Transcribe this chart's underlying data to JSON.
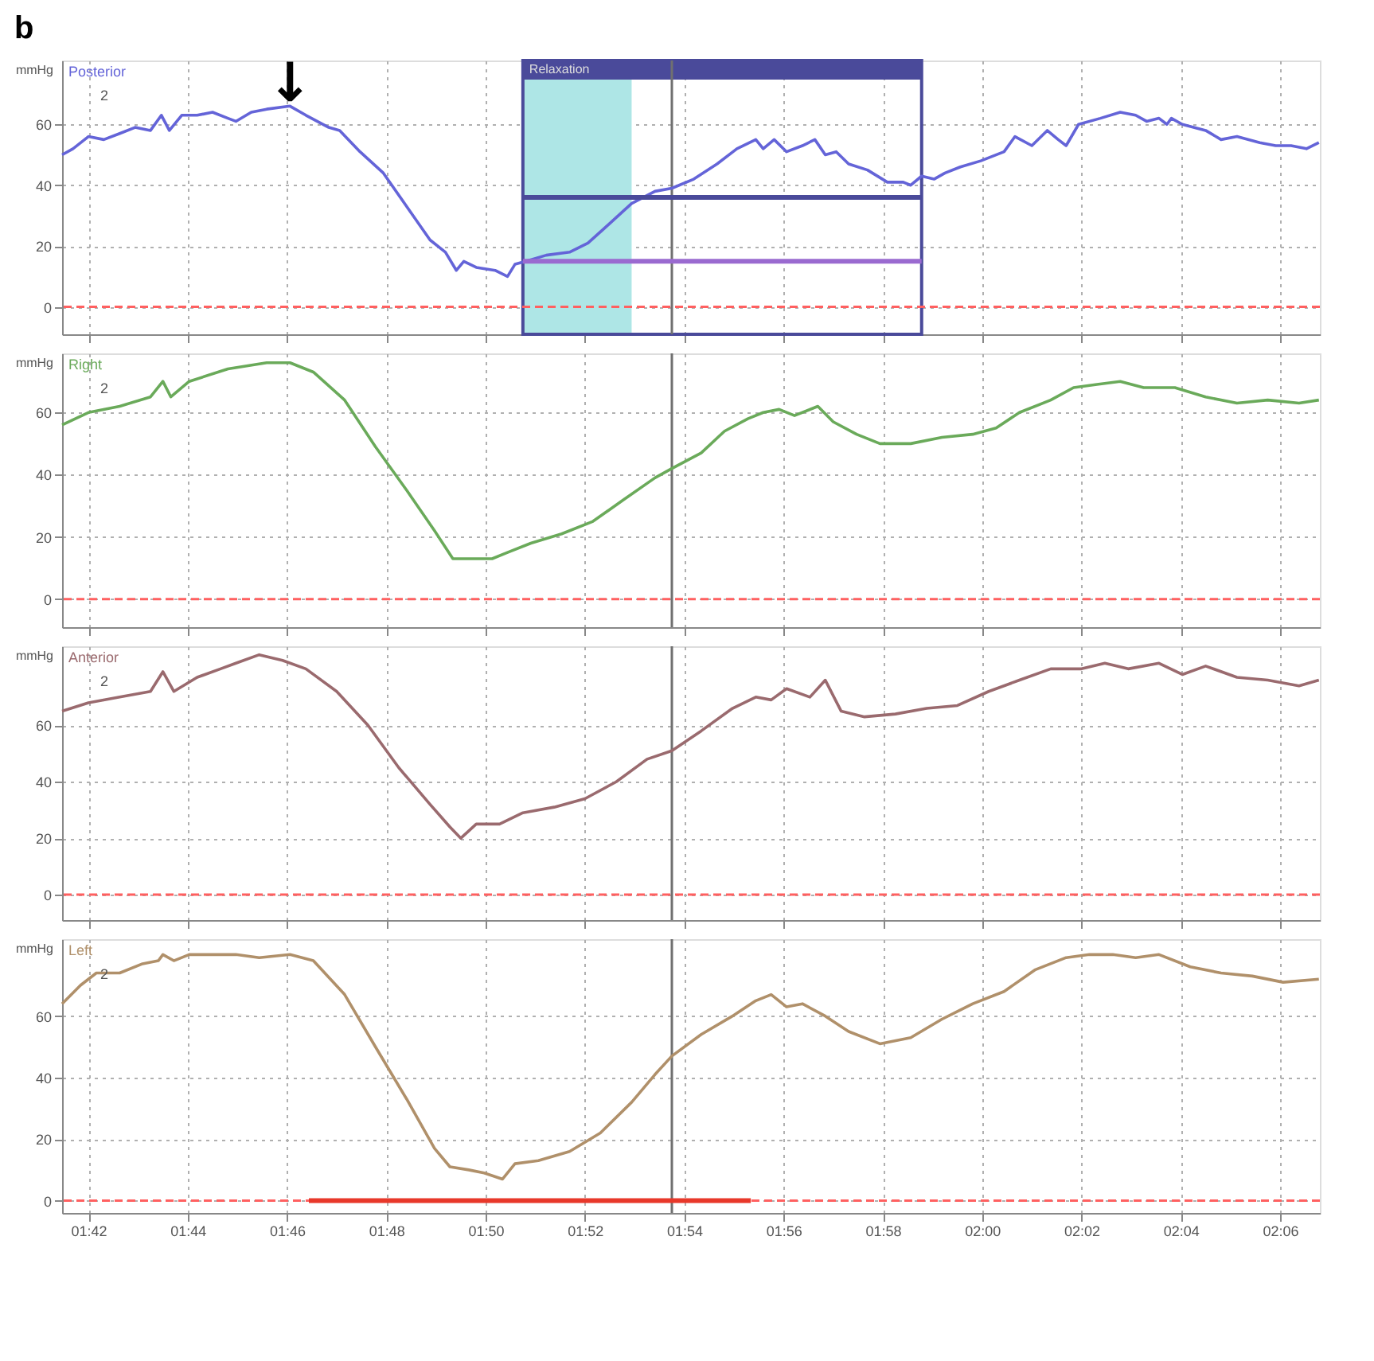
{
  "chart_data": [
    {
      "type": "line",
      "title": "b",
      "ylabel": "mmHg",
      "xlim": [
        101.47,
        126.8
      ],
      "ylim": [
        -9,
        81
      ],
      "yticks": [
        0,
        20,
        40,
        60
      ],
      "xticks": [
        {
          "value": 102,
          "label": null
        },
        {
          "value": 104,
          "label": null
        },
        {
          "value": 106,
          "label": null
        },
        {
          "value": 108,
          "label": null
        },
        {
          "value": 110,
          "label": null
        },
        {
          "value": 112,
          "label": null
        },
        {
          "value": 114,
          "label": null
        },
        {
          "value": 116,
          "label": null
        },
        {
          "value": 118,
          "label": null
        },
        {
          "value": 120,
          "label": null
        },
        {
          "value": 122,
          "label": null
        },
        {
          "value": 124,
          "label": null
        },
        {
          "value": 126,
          "label": null
        }
      ],
      "tick_labels": "y",
      "grid": true,
      "annotations": [
        "2",
        {
          "text": "↓",
          "x": 106.06,
          "y": 66
        }
      ],
      "bands": [
        {
          "axis": "x",
          "from": 110.75,
          "to": 112.94,
          "color": "#aee6e6"
        },
        {
          "axis": "x",
          "from": 110.75,
          "to": 118.78,
          "label": "Relaxation",
          "color": "#4a4a9a"
        }
      ],
      "ref_lines": [
        {
          "axis": "y",
          "value": 0,
          "color": "#ff6060",
          "line_style": "dashed"
        },
        {
          "axis": "x",
          "value": 113.75,
          "color": "#707070"
        }
      ],
      "series": [
        {
          "name": "Posterior",
          "color": "#6464d8",
          "x": [
            101.47,
            101.69,
            102,
            102.31,
            102.63,
            102.94,
            103.25,
            103.47,
            103.63,
            103.88,
            104.19,
            104.5,
            104.81,
            104.97,
            105.28,
            105.59,
            106.06,
            106.38,
            106.84,
            107.06,
            107.47,
            107.94,
            108.41,
            108.88,
            109.19,
            109.41,
            109.56,
            109.81,
            110.19,
            110.44,
            110.59,
            110.81,
            111.22,
            111.69,
            112.06,
            112.47,
            112.94,
            113.41,
            113.75,
            114.19,
            114.66,
            115.06,
            115.44,
            115.59,
            115.81,
            116.06,
            116.38,
            116.63,
            116.84,
            117.06,
            117.31,
            117.69,
            118.09,
            118.41,
            118.56,
            118.78,
            119.03,
            119.25,
            119.56,
            119.97,
            120.44,
            120.66,
            121,
            121.31,
            121.53,
            121.69,
            121.94,
            122.38,
            122.78,
            123.09,
            123.31,
            123.56,
            123.72,
            123.81,
            124.03,
            124.5,
            124.81,
            125.13,
            125.59,
            125.91,
            126.22,
            126.53,
            126.78
          ],
          "values": [
            50,
            52,
            56,
            55,
            57,
            59,
            58,
            63,
            58,
            63,
            63,
            64,
            62,
            61,
            64,
            65,
            66,
            63,
            59,
            58,
            51,
            44,
            33,
            22,
            18,
            12,
            15,
            13,
            12,
            10,
            14,
            15,
            17,
            18,
            21,
            27,
            34,
            38,
            39,
            42,
            47,
            52,
            55,
            52,
            55,
            51,
            53,
            55,
            50,
            51,
            47,
            45,
            41,
            41,
            40,
            43,
            42,
            44,
            46,
            48,
            51,
            56,
            53,
            58,
            55,
            53,
            60,
            62,
            64,
            63,
            61,
            62,
            60,
            62,
            60,
            58,
            55,
            56,
            54,
            53,
            53,
            52,
            54
          ]
        },
        {
          "color": "#4a4a9a",
          "x": [
            110.75,
            118.78
          ],
          "values": [
            36,
            36
          ]
        },
        {
          "color": "#9a6ad0",
          "x": [
            110.75,
            118.78
          ],
          "values": [
            15,
            15
          ]
        }
      ]
    },
    {
      "type": "line",
      "ylabel": "mmHg",
      "xlim": [
        101.47,
        126.8
      ],
      "ylim": [
        -9,
        79
      ],
      "yticks": [
        0,
        20,
        40,
        60
      ],
      "xticks": [
        {
          "value": 102,
          "label": null
        },
        {
          "value": 104,
          "label": null
        },
        {
          "value": 106,
          "label": null
        },
        {
          "value": 108,
          "label": null
        },
        {
          "value": 110,
          "label": null
        },
        {
          "value": 112,
          "label": null
        },
        {
          "value": 114,
          "label": null
        },
        {
          "value": 116,
          "label": null
        },
        {
          "value": 118,
          "label": null
        },
        {
          "value": 120,
          "label": null
        },
        {
          "value": 122,
          "label": null
        },
        {
          "value": 124,
          "label": null
        },
        {
          "value": 126,
          "label": null
        }
      ],
      "tick_labels": "y",
      "grid": true,
      "annotations": [
        "2"
      ],
      "ref_lines": [
        {
          "axis": "y",
          "value": 0,
          "color": "#ff6060",
          "line_style": "dashed"
        },
        {
          "axis": "x",
          "value": 113.75,
          "color": "#707070"
        }
      ],
      "series": [
        {
          "name": "Right",
          "color": "#6aaa5a",
          "x": [
            101.47,
            102,
            102.63,
            103.25,
            103.5,
            103.66,
            104.03,
            104.81,
            105.59,
            106.06,
            106.53,
            107.16,
            107.78,
            108.41,
            108.97,
            109.34,
            109.66,
            110.13,
            110.44,
            110.91,
            111.53,
            112.16,
            112.78,
            113.41,
            113.75,
            114.34,
            114.81,
            115.28,
            115.59,
            115.91,
            116.22,
            116.69,
            117,
            117.47,
            117.94,
            118.56,
            119.19,
            119.81,
            120.28,
            120.75,
            121.38,
            121.84,
            122.31,
            122.78,
            123.25,
            123.88,
            124.5,
            125.13,
            125.75,
            126.38,
            126.78
          ],
          "values": [
            56,
            60,
            62,
            65,
            70,
            65,
            70,
            74,
            76,
            76,
            73,
            64,
            49,
            35,
            22,
            13,
            13,
            13,
            15,
            18,
            21,
            25,
            32,
            39,
            42,
            47,
            54,
            58,
            60,
            61,
            59,
            62,
            57,
            53,
            50,
            50,
            52,
            53,
            55,
            60,
            64,
            68,
            69,
            70,
            68,
            68,
            65,
            63,
            64,
            63,
            64
          ]
        }
      ]
    },
    {
      "type": "line",
      "ylabel": "mmHg",
      "xlim": [
        101.47,
        126.8
      ],
      "ylim": [
        -9,
        88
      ],
      "yticks": [
        0,
        20,
        40,
        60
      ],
      "xticks": [
        {
          "value": 102,
          "label": null
        },
        {
          "value": 104,
          "label": null
        },
        {
          "value": 106,
          "label": null
        },
        {
          "value": 108,
          "label": null
        },
        {
          "value": 110,
          "label": null
        },
        {
          "value": 112,
          "label": null
        },
        {
          "value": 114,
          "label": null
        },
        {
          "value": 116,
          "label": null
        },
        {
          "value": 118,
          "label": null
        },
        {
          "value": 120,
          "label": null
        },
        {
          "value": 122,
          "label": null
        },
        {
          "value": 124,
          "label": null
        },
        {
          "value": 126,
          "label": null
        }
      ],
      "tick_labels": "y",
      "grid": true,
      "annotations": [
        "2"
      ],
      "ref_lines": [
        {
          "axis": "y",
          "value": 0,
          "color": "#ff6060",
          "line_style": "dashed"
        },
        {
          "axis": "x",
          "value": 113.75,
          "color": "#707070"
        }
      ],
      "series": [
        {
          "name": "Anterior",
          "color": "#9a6a6e",
          "x": [
            101.47,
            102,
            102.63,
            103.25,
            103.5,
            103.72,
            104.19,
            104.66,
            104.97,
            105.44,
            105.91,
            106.38,
            107,
            107.63,
            108.25,
            108.88,
            109.28,
            109.5,
            109.81,
            110.28,
            110.75,
            111.38,
            112,
            112.63,
            113.25,
            113.75,
            114.34,
            114.97,
            115.44,
            115.75,
            116.06,
            116.53,
            116.84,
            117.16,
            117.63,
            118.25,
            118.88,
            119.5,
            120.13,
            120.75,
            121.38,
            122,
            122.47,
            122.94,
            123.56,
            124.03,
            124.5,
            125.13,
            125.75,
            126.38,
            126.78
          ],
          "values": [
            65,
            68,
            70,
            72,
            79,
            72,
            77,
            80,
            82,
            85,
            83,
            80,
            72,
            60,
            45,
            32,
            24,
            20,
            25,
            25,
            29,
            31,
            34,
            40,
            48,
            51,
            58,
            66,
            70,
            69,
            73,
            70,
            76,
            65,
            63,
            64,
            66,
            67,
            72,
            76,
            80,
            80,
            82,
            80,
            82,
            78,
            81,
            77,
            76,
            74,
            76
          ]
        }
      ]
    },
    {
      "type": "line",
      "ylabel": "mmHg",
      "xlim": [
        101.47,
        126.8
      ],
      "ylim": [
        -4,
        85
      ],
      "yticks": [
        0,
        20,
        40,
        60
      ],
      "xticks": [
        {
          "value": 102,
          "label": "01:42"
        },
        {
          "value": 104,
          "label": "01:44"
        },
        {
          "value": 106,
          "label": "01:46"
        },
        {
          "value": 108,
          "label": "01:48"
        },
        {
          "value": 110,
          "label": "01:50"
        },
        {
          "value": 112,
          "label": "01:52"
        },
        {
          "value": 114,
          "label": "01:54"
        },
        {
          "value": 116,
          "label": "01:56"
        },
        {
          "value": 118,
          "label": "01:58"
        },
        {
          "value": 120,
          "label": "02:00"
        },
        {
          "value": 122,
          "label": "02:02"
        },
        {
          "value": 124,
          "label": "02:04"
        },
        {
          "value": 126,
          "label": "02:06"
        }
      ],
      "grid": true,
      "annotations": [
        "2"
      ],
      "ref_lines": [
        {
          "axis": "y",
          "value": 0,
          "color": "#ff6060",
          "line_style": "dashed"
        },
        {
          "axis": "x",
          "value": 113.75,
          "color": "#707070"
        }
      ],
      "series": [
        {
          "name": "Left",
          "color": "#b0906a",
          "x": [
            101.47,
            101.84,
            102.16,
            102.63,
            103.09,
            103.41,
            103.5,
            103.72,
            104.03,
            104.5,
            104.97,
            105.44,
            106.06,
            106.53,
            107.16,
            107.78,
            108.41,
            108.97,
            109.28,
            109.66,
            109.97,
            110.34,
            110.59,
            111.06,
            111.69,
            112.31,
            112.94,
            113.41,
            113.75,
            114.34,
            114.97,
            115.44,
            115.75,
            116.06,
            116.38,
            116.84,
            117.31,
            117.94,
            118.56,
            119.19,
            119.81,
            120.44,
            121.06,
            121.69,
            122.16,
            122.63,
            123.09,
            123.56,
            124.19,
            124.81,
            125.44,
            126.06,
            126.78
          ],
          "values": [
            64,
            70,
            74,
            74,
            77,
            78,
            80,
            78,
            80,
            80,
            80,
            79,
            80,
            78,
            67,
            50,
            33,
            17,
            11,
            10,
            9,
            7,
            12,
            13,
            16,
            22,
            32,
            41,
            47,
            54,
            60,
            65,
            67,
            63,
            64,
            60,
            55,
            51,
            53,
            59,
            64,
            68,
            75,
            79,
            80,
            80,
            79,
            80,
            76,
            74,
            73,
            71,
            72
          ]
        },
        {
          "color": "#e8382a",
          "x": [
            106.44,
            115.34
          ],
          "values": [
            0,
            0
          ]
        }
      ]
    }
  ]
}
